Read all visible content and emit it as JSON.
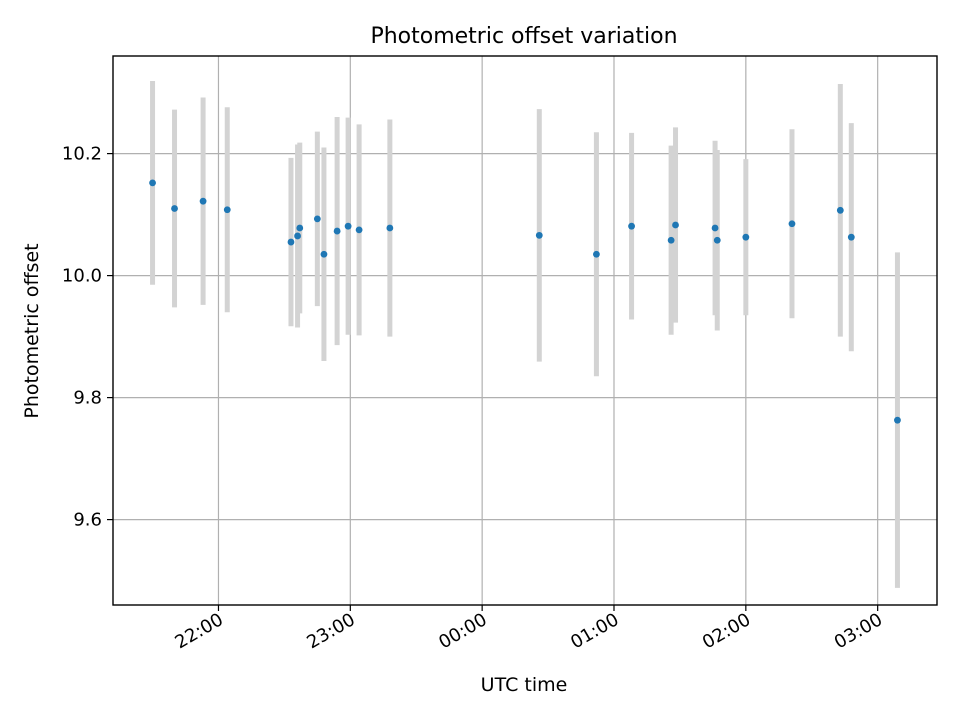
{
  "chart_data": {
    "type": "scatter",
    "title": "Photometric offset variation",
    "xlabel": "UTC time",
    "ylabel": "Photometric offset",
    "x_unit": "hours UTC (ticks wrap at 24:00)",
    "xlim": [
      "21:12",
      "03:27"
    ],
    "ylim": [
      9.46,
      10.36
    ],
    "xticks": [
      "22:00",
      "23:00",
      "00:00",
      "01:00",
      "02:00",
      "03:00"
    ],
    "yticks": [
      "9.6",
      "9.8",
      "10.0",
      "10.2"
    ],
    "grid": true,
    "colors": {
      "point": "#1f77b4",
      "errorbar": "#d3d3d3"
    },
    "series": [
      {
        "points": [
          {
            "x": "21:30",
            "y": 10.152,
            "err": 0.167
          },
          {
            "x": "21:40",
            "y": 10.11,
            "err": 0.162
          },
          {
            "x": "21:53",
            "y": 10.122,
            "err": 0.17
          },
          {
            "x": "22:04",
            "y": 10.108,
            "err": 0.168
          },
          {
            "x": "22:33",
            "y": 10.055,
            "err": 0.138
          },
          {
            "x": "22:36",
            "y": 10.065,
            "err": 0.15
          },
          {
            "x": "22:37",
            "y": 10.078,
            "err": 0.14
          },
          {
            "x": "22:45",
            "y": 10.093,
            "err": 0.143
          },
          {
            "x": "22:48",
            "y": 10.035,
            "err": 0.175
          },
          {
            "x": "22:54",
            "y": 10.073,
            "err": 0.187
          },
          {
            "x": "22:59",
            "y": 10.081,
            "err": 0.178
          },
          {
            "x": "23:04",
            "y": 10.075,
            "err": 0.173
          },
          {
            "x": "23:18",
            "y": 10.078,
            "err": 0.178
          },
          {
            "x": "00:26",
            "y": 10.066,
            "err": 0.207
          },
          {
            "x": "00:52",
            "y": 10.035,
            "err": 0.2
          },
          {
            "x": "01:08",
            "y": 10.081,
            "err": 0.153
          },
          {
            "x": "01:26",
            "y": 10.058,
            "err": 0.155
          },
          {
            "x": "01:28",
            "y": 10.083,
            "err": 0.16
          },
          {
            "x": "01:46",
            "y": 10.078,
            "err": 0.143
          },
          {
            "x": "01:47",
            "y": 10.058,
            "err": 0.148
          },
          {
            "x": "02:00",
            "y": 10.063,
            "err": 0.128
          },
          {
            "x": "02:21",
            "y": 10.085,
            "err": 0.155
          },
          {
            "x": "02:43",
            "y": 10.107,
            "err": 0.207
          },
          {
            "x": "02:48",
            "y": 10.063,
            "err": 0.187
          },
          {
            "x": "03:09",
            "y": 9.763,
            "err": 0.275
          }
        ]
      }
    ]
  }
}
